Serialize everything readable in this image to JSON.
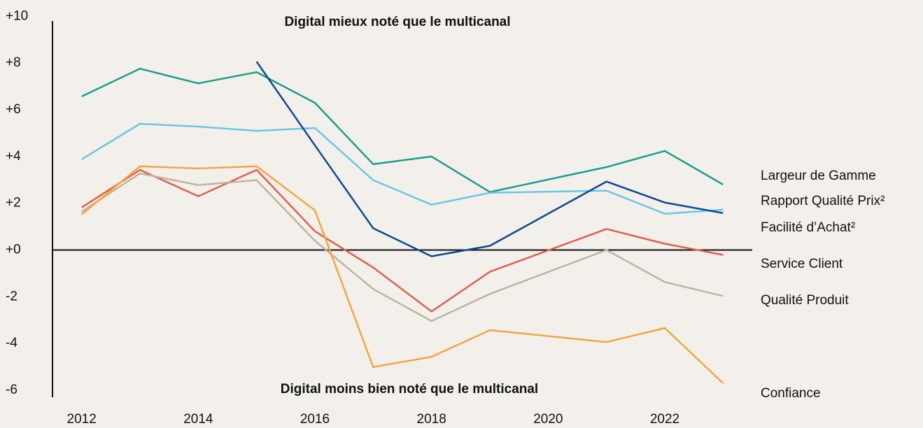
{
  "chart_data": {
    "type": "line",
    "annotations": [
      "Digital mieux noté que le multicanal",
      "Digital moins bien noté que le multicanal"
    ],
    "x": [
      2012,
      2013,
      2014,
      2015,
      2016,
      2017,
      2018,
      2019,
      2021,
      2022,
      2023
    ],
    "series": [
      {
        "name": "Largeur de Gamme",
        "color": "#1a9e8f",
        "values": [
          6.57,
          7.76,
          7.13,
          7.61,
          6.3,
          3.67,
          4.0,
          2.48,
          3.55,
          4.24,
          2.8
        ]
      },
      {
        "name": "Rapport Qualité Prix²",
        "color": "#6cc5e8",
        "values": [
          3.88,
          5.4,
          5.28,
          5.1,
          5.22,
          2.99,
          1.94,
          2.45,
          2.54,
          1.55,
          1.73
        ]
      },
      {
        "name": "Facilité d’Achat²",
        "color": "#0d4a93",
        "values": [
          null,
          null,
          null,
          8.06,
          4.48,
          0.93,
          -0.27,
          0.18,
          2.93,
          2.03,
          1.58
        ]
      },
      {
        "name": "Service Client",
        "color": "#e0604c",
        "values": [
          1.82,
          3.43,
          2.3,
          3.43,
          0.8,
          -0.75,
          -2.63,
          -0.93,
          0.9,
          0.27,
          -0.21
        ]
      },
      {
        "name": "Qualité Produit",
        "color": "#bfb3a0",
        "values": [
          1.64,
          3.28,
          2.78,
          2.99,
          0.39,
          -1.67,
          -3.04,
          -1.88,
          0,
          -1.37,
          -1.97
        ]
      },
      {
        "name": "Confiance",
        "color": "#f5a540",
        "values": [
          1.52,
          3.58,
          3.49,
          3.58,
          1.7,
          -5.01,
          -4.57,
          -3.43,
          -3.94,
          -3.34,
          -5.7
        ]
      }
    ],
    "xlim": [
      2011.5,
      2023.5
    ],
    "xticks": [
      2012,
      2014,
      2016,
      2018,
      2020,
      2022
    ],
    "ylim": [
      -6.3,
      9.8
    ],
    "yticks": [
      {
        "value": 10,
        "label": "+10"
      },
      {
        "value": 8,
        "label": "+8"
      },
      {
        "value": 6,
        "label": "+6"
      },
      {
        "value": 4,
        "label": "+4"
      },
      {
        "value": 2,
        "label": "+2"
      },
      {
        "value": 0,
        "label": "+0"
      },
      -2,
      -4,
      -6
    ],
    "grid": false
  }
}
